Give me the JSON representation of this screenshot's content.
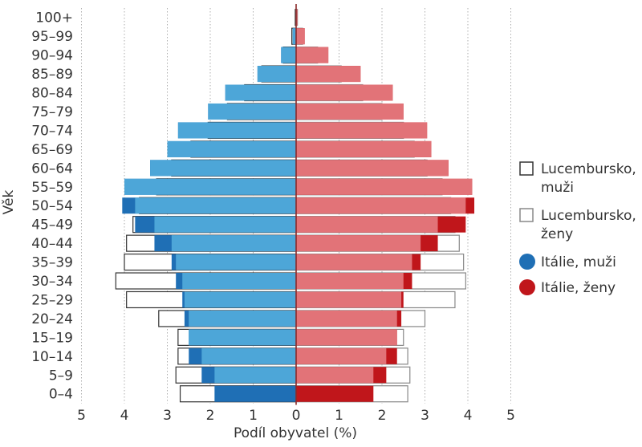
{
  "chart_data": {
    "type": "bar",
    "orientation": "horizontal",
    "layout": "population-pyramid",
    "title": "",
    "xlabel": "Podíl obyvatel (%)",
    "ylabel": "Věk",
    "xlim": [
      -5,
      5
    ],
    "x_ticks": [
      "5",
      "4",
      "3",
      "2",
      "1",
      "0",
      "1",
      "2",
      "3",
      "4",
      "5"
    ],
    "grid": "vertical-dotted",
    "legend_position": "right",
    "categories": [
      "0–4",
      "5–9",
      "10–14",
      "15–19",
      "20–24",
      "25–29",
      "30–34",
      "35–39",
      "40–44",
      "45–49",
      "50–54",
      "55–59",
      "60–64",
      "65–69",
      "70–74",
      "75–79",
      "80–84",
      "85–89",
      "90–94",
      "95–99",
      "100+"
    ],
    "series": [
      {
        "name": "Lucembursko, muži",
        "legend_lines": [
          "Lucembursko,",
          "muži"
        ],
        "side": "left",
        "style": "outline",
        "color": "#333333",
        "values": [
          2.7,
          2.8,
          2.75,
          2.75,
          3.2,
          3.95,
          4.2,
          4.0,
          3.95,
          3.8,
          3.65,
          3.25,
          2.9,
          2.45,
          2.05,
          1.6,
          1.2,
          0.8,
          0.3,
          0.1,
          0.02
        ]
      },
      {
        "name": "Lucembursko, ženy",
        "legend_lines": [
          "Lucembursko,",
          "ženy"
        ],
        "side": "right",
        "style": "outline",
        "color": "#888888",
        "values": [
          2.6,
          2.65,
          2.6,
          2.5,
          3.0,
          3.7,
          3.95,
          3.9,
          3.8,
          3.7,
          3.6,
          3.4,
          3.05,
          2.75,
          2.5,
          2.0,
          1.55,
          1.05,
          0.5,
          0.15,
          0.03
        ]
      },
      {
        "name": "Itálie, muži",
        "legend_lines": [
          "Itálie, muži"
        ],
        "side": "left",
        "style": "filled",
        "color": "#1f6fb5",
        "values": [
          1.9,
          2.2,
          2.5,
          2.5,
          2.6,
          2.65,
          2.8,
          2.9,
          3.3,
          3.75,
          4.05,
          4.0,
          3.4,
          3.0,
          2.75,
          2.05,
          1.65,
          0.9,
          0.35,
          0.08,
          0.01
        ]
      },
      {
        "name": "Itálie, ženy",
        "legend_lines": [
          "Itálie, ženy"
        ],
        "side": "right",
        "style": "filled",
        "color": "#c0161b",
        "values": [
          1.8,
          2.1,
          2.35,
          2.35,
          2.45,
          2.5,
          2.7,
          2.9,
          3.3,
          3.95,
          4.15,
          4.1,
          3.55,
          3.15,
          3.05,
          2.5,
          2.25,
          1.5,
          0.75,
          0.2,
          0.03
        ]
      }
    ]
  },
  "colors": {
    "italy_male_fill": "#1f6fb5",
    "italy_male_fill_light": "#4da6d8",
    "italy_female_fill": "#c0161b",
    "italy_female_fill_light": "#e27378",
    "lux_male_outline": "#333333",
    "lux_female_outline": "#888888",
    "zero_line": "#8a2a2a",
    "grid": "#9a9a9a",
    "text": "#333333"
  }
}
